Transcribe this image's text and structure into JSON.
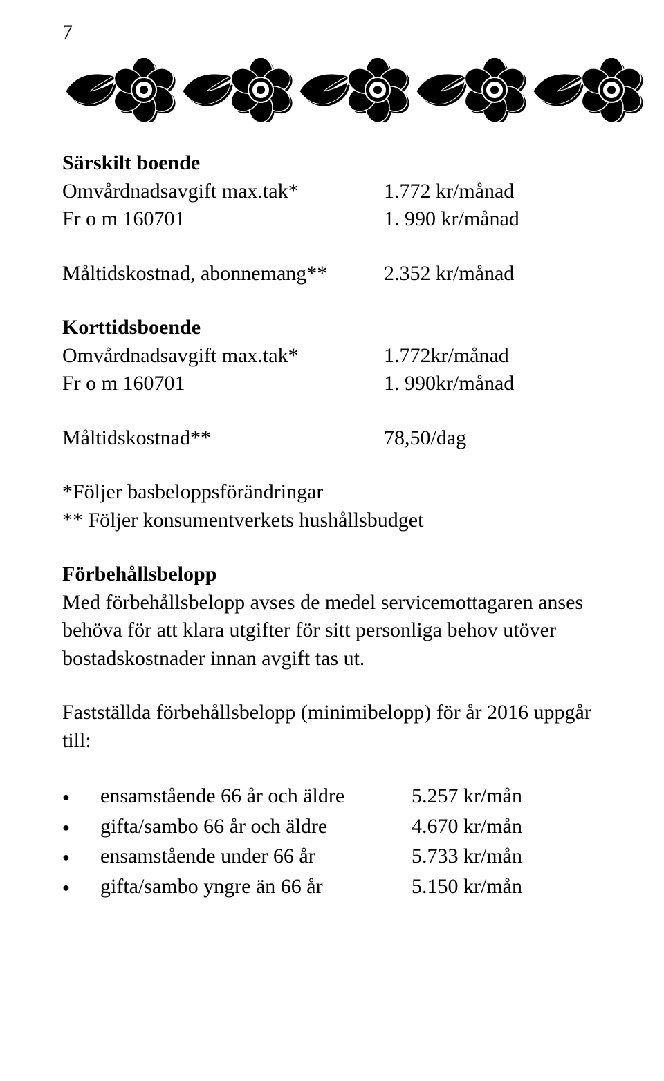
{
  "page_number": "7",
  "ornament": {
    "count": 5
  },
  "section1": {
    "heading": "Särskilt boende",
    "rows": [
      {
        "label": "Omvårdnadsavgift max.tak*",
        "value": "1.772  kr/månad"
      },
      {
        "label": "Fr o m 160701",
        "value": "1. 990 kr/månad"
      }
    ]
  },
  "section2": {
    "rows": [
      {
        "label": "Måltidskostnad, abonnemang**",
        "value": "2.352 kr/månad"
      }
    ]
  },
  "section3": {
    "heading": "Korttidsboende",
    "rows": [
      {
        "label": "Omvårdnadsavgift max.tak*",
        "value": "1.772kr/månad"
      },
      {
        "label": "Fr o m 160701",
        "value": "1. 990kr/månad"
      }
    ]
  },
  "section4": {
    "rows": [
      {
        "label": "Måltidskostnad**",
        "value": "78,50/dag"
      }
    ]
  },
  "footnotes": [
    "*Följer basbeloppsförändringar",
    "** Följer konsumentverkets hushållsbudget"
  ],
  "forb": {
    "heading": "Förbehållsbelopp",
    "body": "Med förbehållsbelopp avses de medel servicemottagaren anses behöva för att klara utgifter för sitt personliga behov utöver bostadskostnader innan avgift tas ut."
  },
  "fastst": "Fastställda förbehållsbelopp (minimibelopp) för år 2016 uppgår till:",
  "bullets": [
    {
      "label": "ensamstående 66 år och äldre",
      "value": "5.257 kr/mån"
    },
    {
      "label": "gifta/sambo 66 år och äldre",
      "value": "4.670 kr/mån"
    },
    {
      "label": "ensamstående under 66 år",
      "value": "5.733 kr/mån"
    },
    {
      "label": "gifta/sambo yngre än 66 år",
      "value": "5.150 kr/mån"
    }
  ],
  "colors": {
    "text": "#000000",
    "background": "#ffffff"
  }
}
